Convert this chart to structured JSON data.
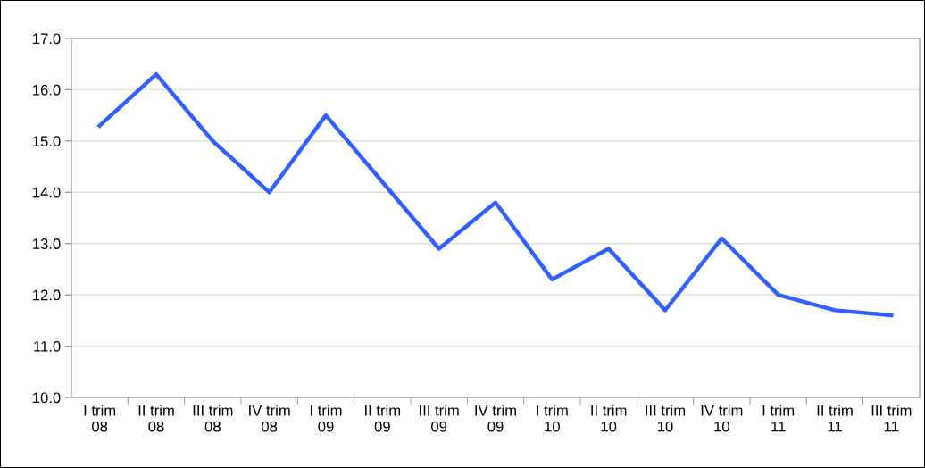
{
  "chart_data": {
    "type": "line",
    "categories": [
      "I trim\n08",
      "II trim\n08",
      "III trim\n08",
      "IV trim\n08",
      "I trim\n09",
      "II trim\n09",
      "III trim\n09",
      "IV trim\n09",
      "I trim\n10",
      "II trim\n10",
      "III trim\n10",
      "IV trim\n10",
      "I trim\n11",
      "II trim\n11",
      "III trim\n11"
    ],
    "series": [
      {
        "color": "#3060ff",
        "values": [
          15.3,
          16.3,
          15.0,
          14.0,
          15.5,
          14.2,
          12.9,
          13.8,
          12.3,
          12.9,
          11.7,
          13.1,
          12.0,
          11.7,
          11.6
        ]
      }
    ],
    "ylim": [
      10.0,
      17.0
    ],
    "yticks": [
      {
        "value": 10,
        "label": "10.0"
      },
      {
        "value": 11,
        "label": "11.0"
      },
      {
        "value": 12,
        "label": "12.0"
      },
      {
        "value": 13,
        "label": "13.0"
      },
      {
        "value": 14,
        "label": "14.0"
      },
      {
        "value": 15,
        "label": "15.0"
      },
      {
        "value": 16,
        "label": "16.0"
      },
      {
        "value": 17,
        "label": "17.0"
      }
    ],
    "grid": "y",
    "legend": false,
    "marker": "none",
    "line_style": "solid"
  }
}
